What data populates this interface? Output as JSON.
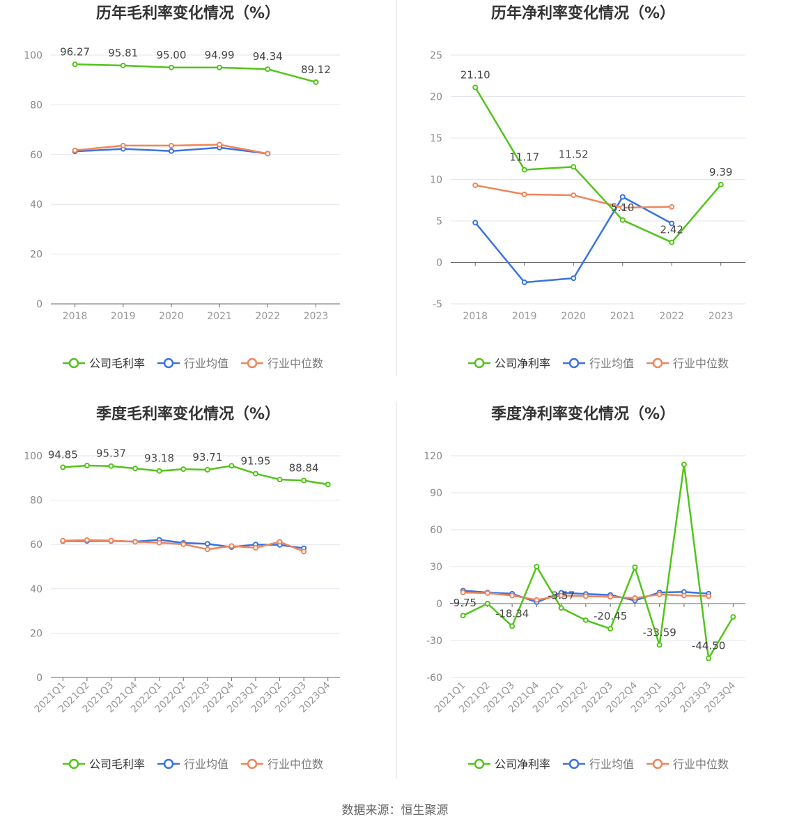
{
  "source": "数据来源：恒生聚源",
  "colors": {
    "company": "#52c41a",
    "avg": "#3a73e0",
    "median": "#f0855a"
  },
  "chart_data": [
    {
      "type": "line",
      "title": "历年毛利率变化情况（%）",
      "categories": [
        "2018",
        "2019",
        "2020",
        "2021",
        "2022",
        "2023"
      ],
      "ylim": [
        0,
        100
      ],
      "yticks": [
        0,
        20,
        40,
        60,
        80,
        100
      ],
      "grid": true,
      "legend_position": "bottom",
      "series": [
        {
          "name": "公司毛利率",
          "key": "company",
          "values": [
            96.27,
            95.81,
            95.0,
            94.99,
            94.34,
            89.12
          ],
          "labels": [
            "96.27",
            "95.81",
            "95.00",
            "94.99",
            "94.34",
            "89.12"
          ]
        },
        {
          "name": "行业均值",
          "key": "avg",
          "values": [
            61.3,
            62.3,
            61.4,
            62.8,
            60.4,
            null
          ]
        },
        {
          "name": "行业中位数",
          "key": "median",
          "values": [
            61.7,
            63.6,
            63.6,
            64.0,
            60.4,
            null
          ]
        }
      ]
    },
    {
      "type": "line",
      "title": "历年净利率变化情况（%）",
      "categories": [
        "2018",
        "2019",
        "2020",
        "2021",
        "2022",
        "2023"
      ],
      "ylim": [
        -5,
        25
      ],
      "yticks": [
        -5,
        0,
        5,
        10,
        15,
        20,
        25
      ],
      "grid": true,
      "legend_position": "bottom",
      "series": [
        {
          "name": "公司净利率",
          "key": "company",
          "values": [
            21.1,
            11.17,
            11.52,
            5.1,
            2.42,
            9.39
          ],
          "labels": [
            "21.10",
            "11.17",
            "11.52",
            "5.10",
            "2.42",
            "9.39"
          ]
        },
        {
          "name": "行业均值",
          "key": "avg",
          "values": [
            4.8,
            -2.4,
            -1.9,
            7.9,
            4.7,
            null
          ]
        },
        {
          "name": "行业中位数",
          "key": "median",
          "values": [
            9.3,
            8.2,
            8.1,
            6.6,
            6.7,
            null
          ]
        }
      ]
    },
    {
      "type": "line",
      "title": "季度毛利率变化情况（%）",
      "categories": [
        "2021Q1",
        "2021Q2",
        "2021Q3",
        "2021Q4",
        "2022Q1",
        "2022Q2",
        "2022Q3",
        "2022Q4",
        "2023Q1",
        "2023Q2",
        "2023Q3",
        "2023Q4"
      ],
      "ylim": [
        0,
        100
      ],
      "yticks": [
        0,
        20,
        40,
        60,
        80,
        100
      ],
      "grid": true,
      "legend_position": "bottom",
      "series": [
        {
          "name": "公司毛利率",
          "key": "company",
          "values": [
            94.85,
            95.6,
            95.37,
            94.3,
            93.18,
            94.0,
            93.71,
            95.5,
            91.95,
            89.3,
            88.84,
            87.1
          ],
          "labels": [
            "94.85",
            "",
            "95.37",
            "",
            "93.18",
            "",
            "93.71",
            "",
            "91.95",
            "",
            "88.84",
            ""
          ]
        },
        {
          "name": "行业均值",
          "key": "avg",
          "values": [
            61.5,
            61.6,
            61.6,
            61.3,
            62.1,
            60.7,
            60.3,
            58.8,
            60.0,
            59.8,
            58.3,
            null
          ]
        },
        {
          "name": "行业中位数",
          "key": "median",
          "values": [
            61.7,
            62.0,
            61.8,
            61.2,
            60.8,
            60.1,
            57.8,
            59.3,
            58.5,
            61.2,
            56.8,
            null
          ]
        }
      ]
    },
    {
      "type": "line",
      "title": "季度净利率变化情况（%）",
      "categories": [
        "2021Q1",
        "2021Q2",
        "2021Q3",
        "2021Q4",
        "2022Q1",
        "2022Q2",
        "2022Q3",
        "2022Q4",
        "2023Q1",
        "2023Q2",
        "2023Q3",
        "2023Q4"
      ],
      "ylim": [
        -60,
        120
      ],
      "yticks": [
        -60,
        -30,
        0,
        30,
        60,
        90,
        120
      ],
      "grid": true,
      "legend_position": "bottom",
      "series": [
        {
          "name": "公司净利率",
          "key": "company",
          "values": [
            -9.75,
            0,
            -18.34,
            30.0,
            -3.57,
            -13.5,
            -20.45,
            29.5,
            -33.59,
            113.0,
            -44.5,
            -10.8
          ],
          "labels": [
            "-9.75",
            "",
            "-18.34",
            "",
            "-3.57",
            "",
            "-20.45",
            "",
            "-33.59",
            "",
            "-44.50",
            ""
          ]
        },
        {
          "name": "行业均值",
          "key": "avg",
          "values": [
            10.5,
            9.0,
            8.0,
            1.2,
            8.8,
            7.8,
            7.0,
            2.5,
            9.0,
            9.5,
            8.0,
            null
          ]
        },
        {
          "name": "行业中位数",
          "key": "median",
          "values": [
            9.0,
            8.5,
            6.5,
            3.0,
            6.5,
            6.0,
            5.5,
            4.5,
            7.5,
            6.5,
            6.0,
            null
          ]
        }
      ]
    }
  ]
}
